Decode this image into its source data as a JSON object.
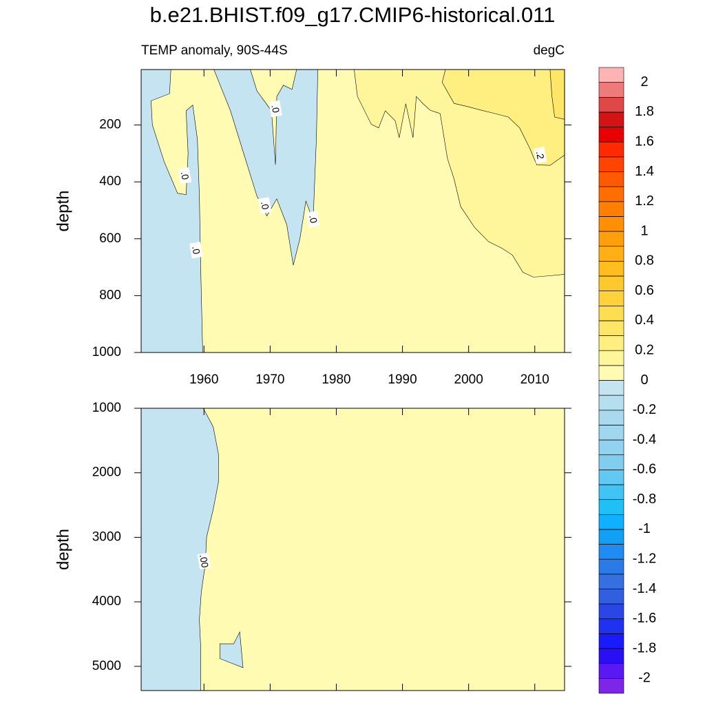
{
  "chart_data": {
    "type": "contour",
    "title": "b.e21.BHIST.f09_g17.CMIP6-historical.011",
    "colorbar": {
      "levels": [
        -2,
        -1.9,
        -1.8,
        -1.7,
        -1.6,
        -1.5,
        -1.4,
        -1.3,
        -1.2,
        -1.1,
        -1,
        -0.9,
        -0.8,
        -0.7,
        -0.6,
        -0.5,
        -0.4,
        -0.3,
        -0.2,
        -0.1,
        0,
        0.1,
        0.2,
        0.3,
        0.4,
        0.5,
        0.6,
        0.7,
        0.8,
        0.9,
        1,
        1.1,
        1.2,
        1.3,
        1.4,
        1.5,
        1.6,
        1.7,
        1.8,
        1.9,
        2
      ],
      "colors": [
        "#7d26e8",
        "#5a18f2",
        "#2a0ff5",
        "#1a1aff",
        "#1e32f0",
        "#2a46e6",
        "#3060e0",
        "#3570e0",
        "#2a7ae8",
        "#1e8cf0",
        "#10a0f5",
        "#0fb0ff",
        "#1ec0f5",
        "#40c4f5",
        "#60c8f2",
        "#80cdf0",
        "#90d2ef",
        "#a0d6ee",
        "#aad9ee",
        "#b5deef",
        "#c5e4f2",
        "#fffbb3",
        "#fff59a",
        "#ffee80",
        "#ffe666",
        "#ffdd50",
        "#ffd23c",
        "#ffc82d",
        "#ffbd1e",
        "#ffb014",
        "#ffa00a",
        "#ff9005",
        "#ff8000",
        "#ff6e00",
        "#ff5a00",
        "#ff4400",
        "#ff2a00",
        "#e80000",
        "#d41414",
        "#e04848",
        "#ef7a7a",
        "#ffb4b4"
      ],
      "ticks": [
        2,
        1.8,
        1.6,
        1.4,
        1.2,
        1,
        0.8,
        0.6,
        0.4,
        0.2,
        0,
        -0.2,
        -0.4,
        -0.6,
        -0.8,
        -1,
        -1.2,
        -1.4,
        -1.6,
        -1.8,
        -2
      ]
    },
    "panels": [
      {
        "subtitle_left": "TEMP anomaly, 90S-44S",
        "subtitle_right": "degC",
        "ylabel": "depth",
        "xlim": [
          1950.5,
          2014.5
        ],
        "xticks": [
          1960,
          1970,
          1980,
          1990,
          2000,
          2010
        ],
        "ylim": [
          5,
          1000
        ],
        "yticks": [
          200,
          400,
          600,
          800,
          1000
        ],
        "base_level": 0,
        "regions": [
          {
            "level": -0.1,
            "points": [
              [
                1950.5,
                5
              ],
              [
                1955,
                5
              ],
              [
                1954.8,
                90
              ],
              [
                1952,
                115
              ],
              [
                1952.2,
                200
              ],
              [
                1954,
                330
              ],
              [
                1956,
                440
              ],
              [
                1957.3,
                445
              ],
              [
                1957.6,
                300
              ],
              [
                1957.3,
                150
              ],
              [
                1958.3,
                130
              ],
              [
                1959,
                250
              ],
              [
                1959.3,
                450
              ],
              [
                1959.5,
                700
              ],
              [
                1959.8,
                1000
              ],
              [
                1950.5,
                1000
              ]
            ]
          },
          {
            "level": -0.1,
            "points": [
              [
                1961.5,
                5
              ],
              [
                1964,
                150
              ],
              [
                1966,
                300
              ],
              [
                1968,
                450
              ],
              [
                1969.5,
                520
              ],
              [
                1971,
                460
              ],
              [
                1972.5,
                550
              ],
              [
                1973.5,
                693
              ],
              [
                1974.5,
                600
              ],
              [
                1975.4,
                468
              ],
              [
                1976.5,
                536
              ],
              [
                1977,
                245
              ],
              [
                1977.2,
                5
              ],
              [
                1974,
                5
              ],
              [
                1973.3,
                75
              ],
              [
                1972,
                60
              ],
              [
                1971,
                100
              ],
              [
                1970.8,
                340
              ],
              [
                1970.2,
                150
              ],
              [
                1968,
                80
              ],
              [
                1967,
                5
              ]
            ]
          },
          {
            "level": 0.1,
            "points": [
              [
                1982.7,
                5
              ],
              [
                1983.2,
                100
              ],
              [
                1985.3,
                198
              ],
              [
                1986.4,
                210
              ],
              [
                1987.4,
                150
              ],
              [
                1988.9,
                185
              ],
              [
                1989.5,
                245
              ],
              [
                1990.5,
                125
              ],
              [
                1991.6,
                245
              ],
              [
                1992.1,
                100
              ],
              [
                1993.1,
                125
              ],
              [
                1994.2,
                148
              ],
              [
                1995.7,
                160
              ],
              [
                1996.8,
                318
              ],
              [
                1997.8,
                390
              ],
              [
                1998.8,
                487
              ],
              [
                2000.9,
                560
              ],
              [
                2003,
                610
              ],
              [
                2005,
                633
              ],
              [
                2006.6,
                657
              ],
              [
                2008.2,
                718
              ],
              [
                2009.8,
                735
              ],
              [
                2012.3,
                730
              ],
              [
                2014.5,
                725
              ],
              [
                2014.5,
                5
              ]
            ]
          },
          {
            "level": 0.2,
            "points": [
              [
                1996.5,
                5
              ],
              [
                1996,
                50
              ],
              [
                1997.8,
                124
              ],
              [
                1999.8,
                135
              ],
              [
                2001.9,
                148
              ],
              [
                2004,
                160
              ],
              [
                2006,
                172
              ],
              [
                2007.7,
                210
              ],
              [
                2009.2,
                280
              ],
              [
                2010.3,
                340
              ],
              [
                2012.3,
                342
              ],
              [
                2014.5,
                306
              ],
              [
                2014.5,
                5
              ]
            ]
          },
          {
            "level": 0.3,
            "points": [
              [
                2012.3,
                5
              ],
              [
                2012.6,
                100
              ],
              [
                2013,
                172
              ],
              [
                2014.5,
                180
              ],
              [
                2014.5,
                5
              ]
            ]
          }
        ],
        "labels": [
          {
            "text": ".0",
            "x": 1957.1,
            "y": 378
          },
          {
            "text": ".0",
            "x": 1970.8,
            "y": 143
          },
          {
            "text": ".0",
            "x": 1969.2,
            "y": 483
          },
          {
            "text": ".0",
            "x": 1976.5,
            "y": 531
          },
          {
            "text": ".0",
            "x": 1958.8,
            "y": 640
          },
          {
            "text": ".2",
            "x": 2010.8,
            "y": 306
          }
        ]
      },
      {
        "ylabel": "depth",
        "xlim": [
          1950.5,
          2014.5
        ],
        "xticks": [
          1960,
          1970,
          1980,
          1990,
          2000,
          2010
        ],
        "ylim": [
          1000,
          5375
        ],
        "yticks": [
          1000,
          2000,
          3000,
          4000,
          5000
        ],
        "base_level": 0,
        "regions": [
          {
            "level": -0.1,
            "points": [
              [
                1950.5,
                1000
              ],
              [
                1959.9,
                1000
              ],
              [
                1961.4,
                1288
              ],
              [
                1962.2,
                1715
              ],
              [
                1962.2,
                2140
              ],
              [
                1961.4,
                2568
              ],
              [
                1960.4,
                2995
              ],
              [
                1960.2,
                3421
              ],
              [
                1959.6,
                3848
              ],
              [
                1959.3,
                4275
              ],
              [
                1959.5,
                4700
              ],
              [
                1959.5,
                5375
              ],
              [
                1950.5,
                5375
              ]
            ]
          },
          {
            "level": -0.1,
            "points": [
              [
                1962.4,
                4650
              ],
              [
                1964.5,
                4650
              ],
              [
                1965.4,
                4467
              ],
              [
                1965.9,
                5021
              ],
              [
                1962.4,
                4880
              ]
            ]
          }
        ],
        "labels": [
          {
            "text": ".00",
            "x": 1960,
            "y": 3368
          }
        ]
      }
    ]
  }
}
